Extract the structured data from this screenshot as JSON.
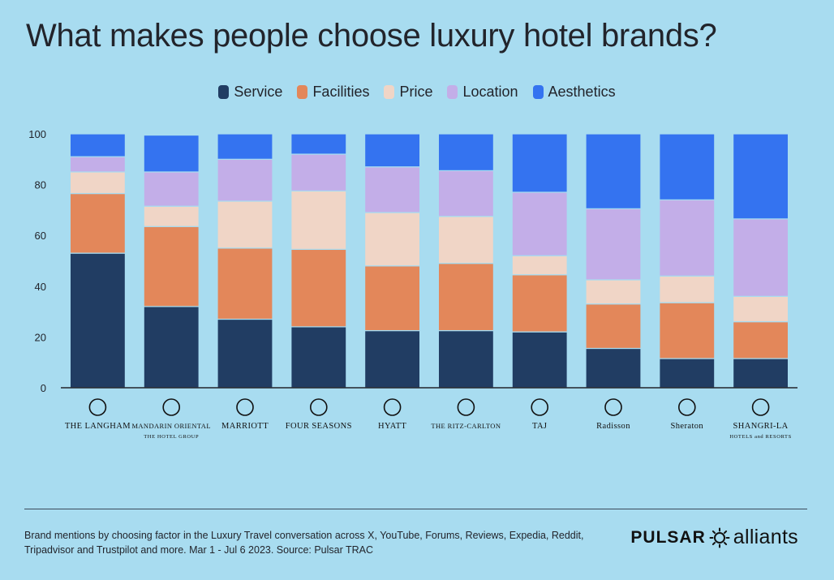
{
  "title": "What makes people choose luxury hotel brands?",
  "footer": {
    "note": "Brand mentions by choosing factor in the Luxury Travel conversation across X, YouTube, Forums, Reviews, Expedia, Reddit, Tripadvisor and Trustpilot and more. Mar 1 - Jul 6 2023. Source: Pulsar TRAC",
    "logo_primary": "PULSAR",
    "logo_secondary": "alliants"
  },
  "chart_data": {
    "type": "bar",
    "stacked": true,
    "title": "What makes people choose luxury hotel brands?",
    "categories": [
      "THE LANGHAM",
      "MANDARIN ORIENTAL",
      "MARRIOTT",
      "FOUR SEASONS",
      "HYATT",
      "THE RITZ-CARLTON",
      "TAJ",
      "Radisson",
      "Sheraton",
      "SHANGRI-LA"
    ],
    "category_sublabels": [
      "",
      "THE HOTEL GROUP",
      "",
      "",
      "",
      "",
      "",
      "",
      "",
      "HOTELS and RESORTS"
    ],
    "series": [
      {
        "name": "Service",
        "color": "#213d63",
        "values": [
          53,
          32,
          27,
          24,
          22.5,
          22.5,
          22,
          15.5,
          11.5,
          11.5
        ]
      },
      {
        "name": "Facilities",
        "color": "#e3875a",
        "values": [
          23.5,
          31.5,
          28,
          30.5,
          25.5,
          26.5,
          22.5,
          17.5,
          22,
          14.5
        ]
      },
      {
        "name": "Price",
        "color": "#f0d5c6",
        "values": [
          8.5,
          8,
          18.5,
          23,
          21,
          18.5,
          7.5,
          9.5,
          10.5,
          10
        ]
      },
      {
        "name": "Location",
        "color": "#c3aee8",
        "values": [
          6,
          13.5,
          16.5,
          14.5,
          18,
          18,
          25,
          28,
          30,
          30.5
        ]
      },
      {
        "name": "Aesthetics",
        "color": "#3473f0",
        "values": [
          9,
          14.5,
          10,
          8,
          13,
          14.5,
          23,
          29.5,
          26,
          33.5
        ]
      }
    ],
    "ylim": [
      0,
      100
    ],
    "yticks": [
      0,
      20,
      40,
      60,
      80,
      100
    ],
    "grid": false,
    "legend": "top-center"
  }
}
